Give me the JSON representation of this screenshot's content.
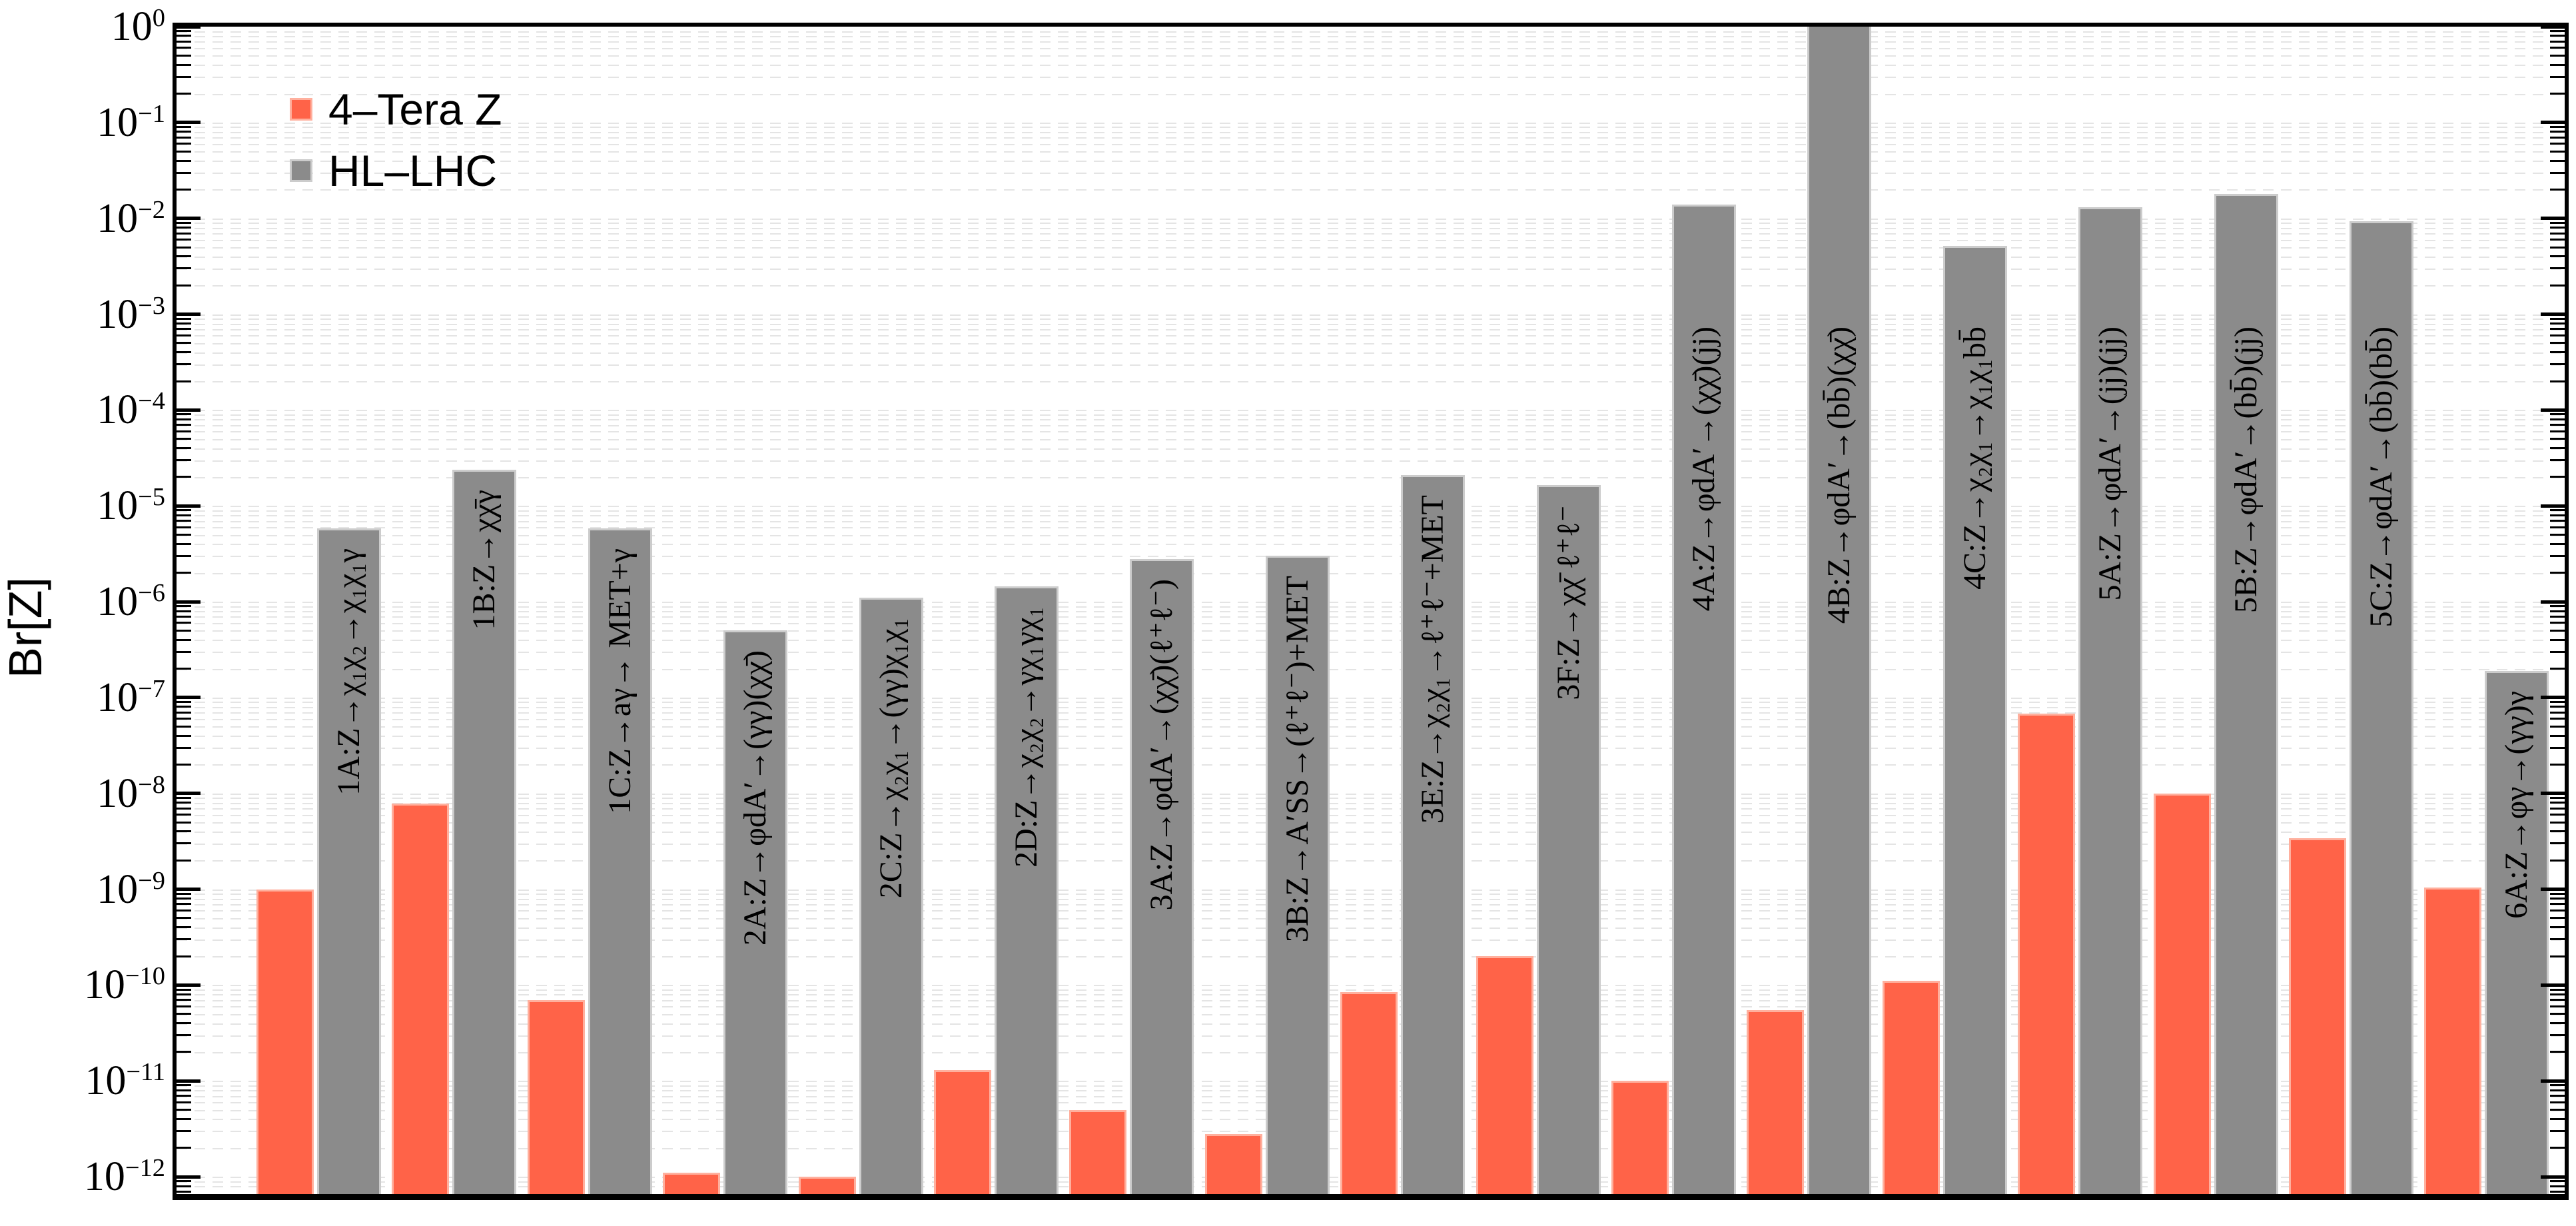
{
  "chart_data": {
    "type": "bar",
    "yscale": "log",
    "title": "",
    "xlabel": "",
    "ylabel": "Br[Z]",
    "ylim": [
      6.6e-13,
      1.0
    ],
    "y_tick_exponents": [
      0,
      -1,
      -2,
      -3,
      -4,
      -5,
      -6,
      -7,
      -8,
      -9,
      -10,
      -11,
      -12
    ],
    "grid": "dashed horizontal gridlines at every log minor tick",
    "legend_position": "upper left",
    "categories": [
      "1A:Z→χ₁χ₂→χ₁χ₁γ",
      "1B:Z→χχ̄γ",
      "1C:Z→aγ→ MET+γ",
      "2A:Z→φdA′→(γγ)(χχ̄)",
      "2C:Z→χ₂χ₁→(γγ)χ₁χ₁",
      "2D:Z→χ₂χ₂→γχ₁γχ₁",
      "3A:Z→φdA′→(χχ̄)(ℓ⁺ℓ⁻)",
      "3B:Z→A′SS→(ℓ⁺ℓ⁻)+MET",
      "3E:Z→χ₂χ₁→ℓ⁺ℓ⁻+MET",
      "3F:Z→χχ̄ ℓ⁺ℓ⁻",
      "4A:Z→φdA′→(χχ̄)(jj)",
      "4B:Z→φdA′→(bb̄)(χχ̄)",
      "4C:Z→χ₂χ₁→χ₁χ₁bb̄",
      "5A:Z→φdA′→(jj)(jj)",
      "5B:Z→φdA′→(bb̄)(jj)",
      "5C:Z→φdA′→(bb̄)(bb̄)",
      "6A:Z→φγ→(γγ)γ"
    ],
    "series": [
      {
        "name": "4–Tera Z",
        "color": "#ff6348",
        "edge_color": "#ffb09e",
        "values": [
          1e-09,
          7.8e-09,
          7e-11,
          1.1e-12,
          1e-12,
          1.3e-11,
          5e-12,
          2.8e-12,
          8.5e-11,
          2e-10,
          1e-11,
          5.5e-11,
          1.1e-10,
          6.8e-08,
          1e-08,
          3.4e-09,
          1.05e-09
        ]
      },
      {
        "name": "HL–LHC",
        "color": "#8b8b8b",
        "edge_color": "#cccccc",
        "values": [
          5.8e-06,
          2.4e-05,
          5.8e-06,
          5e-07,
          1.1e-06,
          1.45e-06,
          2.8e-06,
          3e-06,
          2.1e-05,
          1.65e-05,
          0.014,
          1.0,
          0.0052,
          0.013,
          0.018,
          0.0094,
          1.9e-07
        ]
      }
    ],
    "axis_color": "#000000",
    "grid_color": "#e4e4e4",
    "background_color": "#ffffff"
  }
}
